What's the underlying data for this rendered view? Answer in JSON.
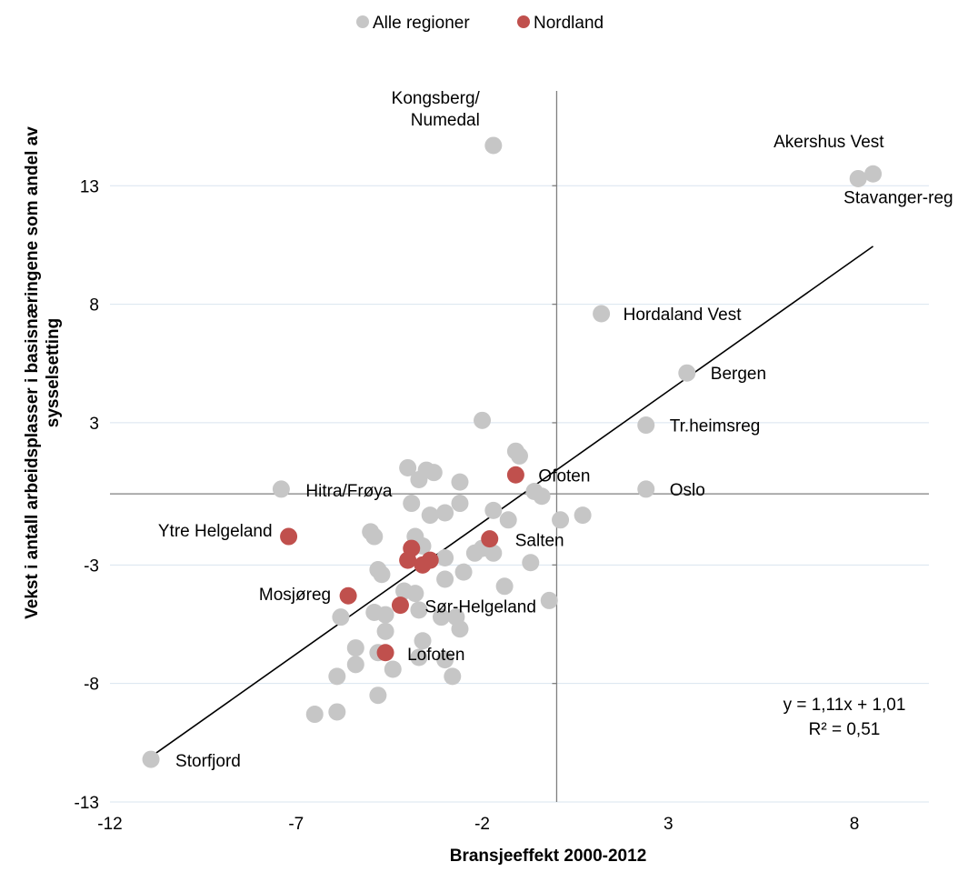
{
  "chart_data": {
    "type": "scatter",
    "xlabel": "Bransjeeffekt 2000-2012",
    "ylabel_lines": [
      "Vekst i antall arbeidsplasser i basisnæringene som andel av",
      "sysselsetting"
    ],
    "xlim": [
      -12,
      10
    ],
    "ylim": [
      -13,
      17
    ],
    "x_ticks": [
      -12,
      -7,
      -2,
      3,
      8
    ],
    "y_ticks": [
      -13,
      -8,
      -3,
      3,
      8,
      13
    ],
    "grid": "horizontal",
    "legend_position": "top",
    "legend": [
      {
        "name": "Alle regioner",
        "color": "#c6c6c6"
      },
      {
        "name": "Nordland",
        "color": "#c0504d"
      }
    ],
    "series": [
      {
        "name": "Alle regioner",
        "color": "#c6c6c6",
        "points": [
          {
            "x": -1.7,
            "y": 14.7,
            "label": "Kongsberg/\nNumedal"
          },
          {
            "x": 8.5,
            "y": 13.5,
            "label": "Akershus Vest"
          },
          {
            "x": 8.1,
            "y": 13.3,
            "label": "Stavanger-reg"
          },
          {
            "x": 1.2,
            "y": 7.6,
            "label": "Hordaland Vest"
          },
          {
            "x": 3.5,
            "y": 5.1,
            "label": "Bergen"
          },
          {
            "x": 2.4,
            "y": 2.9,
            "label": "Tr.heimsreg"
          },
          {
            "x": 2.4,
            "y": 0.2,
            "label": "Oslo"
          },
          {
            "x": -7.4,
            "y": 0.2,
            "label": "Hitra/Frøya"
          },
          {
            "x": -10.9,
            "y": -11.2,
            "label": "Storfjord"
          },
          {
            "x": -2.0,
            "y": 3.1,
            "label": ""
          },
          {
            "x": -1.1,
            "y": 1.8,
            "label": ""
          },
          {
            "x": -1.0,
            "y": 1.6,
            "label": ""
          },
          {
            "x": -4.0,
            "y": 1.1,
            "label": ""
          },
          {
            "x": -3.5,
            "y": 1.0,
            "label": ""
          },
          {
            "x": -3.3,
            "y": 0.9,
            "label": ""
          },
          {
            "x": -3.7,
            "y": 0.6,
            "label": ""
          },
          {
            "x": -2.6,
            "y": 0.5,
            "label": ""
          },
          {
            "x": -0.6,
            "y": 0.1,
            "label": ""
          },
          {
            "x": -0.4,
            "y": -0.1,
            "label": ""
          },
          {
            "x": -3.9,
            "y": -0.4,
            "label": ""
          },
          {
            "x": -2.6,
            "y": -0.4,
            "label": ""
          },
          {
            "x": -1.7,
            "y": -0.7,
            "label": ""
          },
          {
            "x": -3.0,
            "y": -0.8,
            "label": ""
          },
          {
            "x": -3.4,
            "y": -0.9,
            "label": ""
          },
          {
            "x": -1.3,
            "y": -1.1,
            "label": ""
          },
          {
            "x": 0.1,
            "y": -1.1,
            "label": ""
          },
          {
            "x": 0.7,
            "y": -0.9,
            "label": ""
          },
          {
            "x": -5.0,
            "y": -1.6,
            "label": ""
          },
          {
            "x": -4.9,
            "y": -1.8,
            "label": ""
          },
          {
            "x": -3.8,
            "y": -1.8,
            "label": ""
          },
          {
            "x": -3.6,
            "y": -2.2,
            "label": ""
          },
          {
            "x": -2.0,
            "y": -2.3,
            "label": ""
          },
          {
            "x": -2.2,
            "y": -2.5,
            "label": ""
          },
          {
            "x": -1.7,
            "y": -2.5,
            "label": ""
          },
          {
            "x": -3.0,
            "y": -2.7,
            "label": ""
          },
          {
            "x": -0.7,
            "y": -2.9,
            "label": ""
          },
          {
            "x": -4.8,
            "y": -3.2,
            "label": ""
          },
          {
            "x": -4.7,
            "y": -3.4,
            "label": ""
          },
          {
            "x": -2.5,
            "y": -3.3,
            "label": ""
          },
          {
            "x": -3.0,
            "y": -3.6,
            "label": ""
          },
          {
            "x": -1.4,
            "y": -3.9,
            "label": ""
          },
          {
            "x": -4.1,
            "y": -4.1,
            "label": ""
          },
          {
            "x": -3.8,
            "y": -4.2,
            "label": ""
          },
          {
            "x": -0.2,
            "y": -4.5,
            "label": ""
          },
          {
            "x": -3.7,
            "y": -4.9,
            "label": ""
          },
          {
            "x": -4.9,
            "y": -5.0,
            "label": ""
          },
          {
            "x": -4.6,
            "y": -5.1,
            "label": ""
          },
          {
            "x": -3.1,
            "y": -5.2,
            "label": ""
          },
          {
            "x": -2.7,
            "y": -5.2,
            "label": ""
          },
          {
            "x": -5.8,
            "y": -5.2,
            "label": ""
          },
          {
            "x": -4.6,
            "y": -5.8,
            "label": ""
          },
          {
            "x": -2.6,
            "y": -5.7,
            "label": ""
          },
          {
            "x": -5.4,
            "y": -6.5,
            "label": ""
          },
          {
            "x": -4.8,
            "y": -6.7,
            "label": ""
          },
          {
            "x": -3.6,
            "y": -6.2,
            "label": ""
          },
          {
            "x": -3.7,
            "y": -6.9,
            "label": ""
          },
          {
            "x": -3.0,
            "y": -7.0,
            "label": ""
          },
          {
            "x": -5.4,
            "y": -7.2,
            "label": ""
          },
          {
            "x": -4.4,
            "y": -7.4,
            "label": ""
          },
          {
            "x": -5.9,
            "y": -7.7,
            "label": ""
          },
          {
            "x": -2.8,
            "y": -7.7,
            "label": ""
          },
          {
            "x": -4.8,
            "y": -8.5,
            "label": ""
          },
          {
            "x": -5.9,
            "y": -9.2,
            "label": ""
          },
          {
            "x": -6.5,
            "y": -9.3,
            "label": ""
          }
        ]
      },
      {
        "name": "Nordland",
        "color": "#c0504d",
        "points": [
          {
            "x": -1.1,
            "y": 0.8,
            "label": "Ofoten"
          },
          {
            "x": -7.2,
            "y": -1.8,
            "label": "Ytre Helgeland"
          },
          {
            "x": -1.8,
            "y": -1.9,
            "label": "Salten"
          },
          {
            "x": -3.9,
            "y": -2.3,
            "label": ""
          },
          {
            "x": -3.4,
            "y": -2.8,
            "label": ""
          },
          {
            "x": -4.0,
            "y": -2.8,
            "label": ""
          },
          {
            "x": -3.6,
            "y": -3.0,
            "label": ""
          },
          {
            "x": -5.6,
            "y": -4.3,
            "label": "Mosjøreg"
          },
          {
            "x": -4.2,
            "y": -4.7,
            "label": "Sør-Helgeland"
          },
          {
            "x": -4.6,
            "y": -6.7,
            "label": "Lofoten"
          }
        ]
      }
    ],
    "trendline": {
      "slope": 1.11,
      "intercept": 1.01,
      "x_range": [
        -10.9,
        8.5
      ]
    },
    "annotations": [
      "y = 1,11x + 1,01",
      "R² = 0,51"
    ]
  }
}
